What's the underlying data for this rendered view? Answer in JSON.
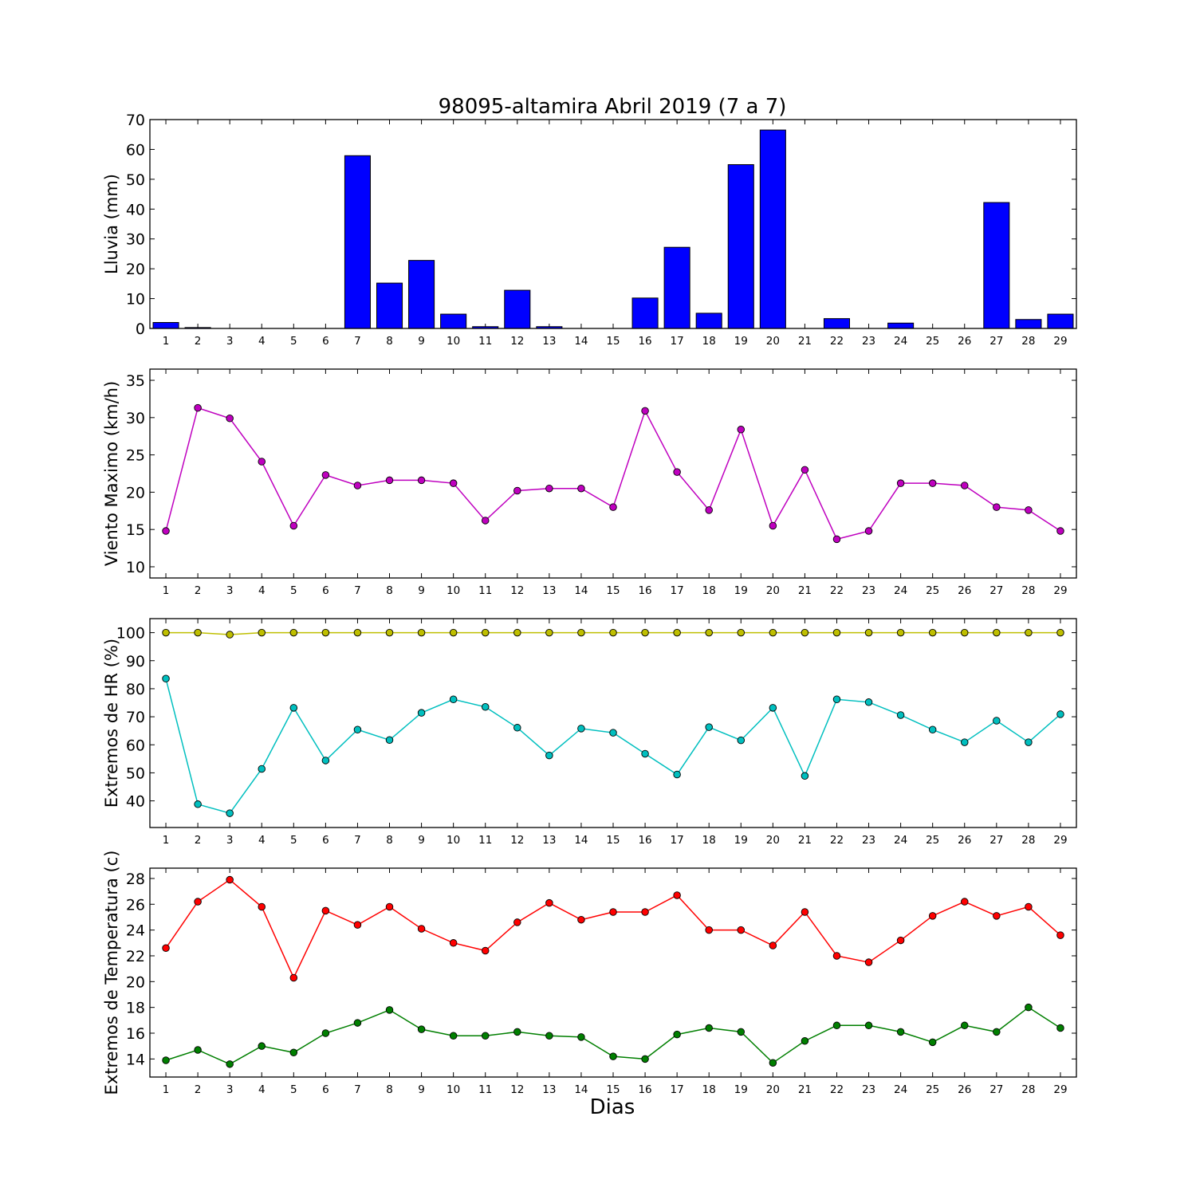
{
  "figure": {
    "title": "98095-altamira Abril 2019  (7 a 7)",
    "xlabel": "Dias"
  },
  "chart_data": [
    {
      "type": "bar",
      "ylabel": "Lluvia (mm)",
      "categories": [
        1,
        2,
        3,
        4,
        5,
        6,
        7,
        8,
        9,
        10,
        11,
        12,
        13,
        14,
        15,
        16,
        17,
        18,
        19,
        20,
        21,
        22,
        23,
        24,
        25,
        26,
        27,
        28,
        29
      ],
      "values": [
        2.0,
        0.3,
        0,
        0,
        0,
        0,
        57.9,
        15.2,
        22.8,
        4.8,
        0.6,
        12.8,
        0.6,
        0,
        0,
        10.2,
        27.2,
        5.1,
        54.9,
        66.5,
        0,
        3.3,
        0,
        1.8,
        0,
        0,
        42.2,
        3.0,
        4.8
      ],
      "ylim": [
        0,
        70
      ],
      "yticks": [
        0,
        10,
        20,
        30,
        40,
        50,
        60,
        70
      ],
      "color": "#0000ff"
    },
    {
      "type": "line",
      "ylabel": "Viento Maximo (km/h)",
      "x": [
        1,
        2,
        3,
        4,
        5,
        6,
        7,
        8,
        9,
        10,
        11,
        12,
        13,
        14,
        15,
        16,
        17,
        18,
        19,
        20,
        21,
        22,
        23,
        24,
        25,
        26,
        27,
        28,
        29
      ],
      "series": [
        {
          "color": "#bf00bf",
          "values": [
            14.8,
            31.3,
            29.9,
            24.1,
            15.5,
            22.3,
            20.9,
            21.6,
            21.6,
            21.2,
            16.2,
            20.2,
            20.5,
            20.5,
            18.0,
            30.9,
            22.7,
            17.6,
            28.4,
            15.5,
            23.0,
            13.7,
            14.8,
            21.2,
            21.2,
            20.9,
            18.0,
            17.6,
            14.8
          ]
        }
      ],
      "ylim": [
        8.5,
        36.5
      ],
      "yticks": [
        10,
        15,
        20,
        25,
        30,
        35
      ]
    },
    {
      "type": "line",
      "ylabel": "Extremos de HR (%)",
      "x": [
        1,
        2,
        3,
        4,
        5,
        6,
        7,
        8,
        9,
        10,
        11,
        12,
        13,
        14,
        15,
        16,
        17,
        18,
        19,
        20,
        21,
        22,
        23,
        24,
        25,
        26,
        27,
        28,
        29
      ],
      "series": [
        {
          "color": "#bfbf00",
          "values": [
            100,
            100,
            99.3,
            100,
            100,
            100,
            100,
            100,
            100,
            100,
            100,
            100,
            100,
            100,
            100,
            100,
            100,
            100,
            100,
            100,
            100,
            100,
            100,
            100,
            100,
            100,
            100,
            100,
            100
          ]
        },
        {
          "color": "#00bfbf",
          "values": [
            83.6,
            38.8,
            35.6,
            51.4,
            73.2,
            54.4,
            65.4,
            61.7,
            71.4,
            76.2,
            73.5,
            66.1,
            56.2,
            65.8,
            64.3,
            56.8,
            49.4,
            66.3,
            61.6,
            73.2,
            48.9,
            76.2,
            75.2,
            70.6,
            65.4,
            60.9,
            68.6,
            60.9,
            70.9
          ]
        }
      ],
      "ylim": [
        30.5,
        105
      ],
      "yticks": [
        40,
        50,
        60,
        70,
        80,
        90,
        100
      ]
    },
    {
      "type": "line",
      "ylabel": "Extremos de Temperatura (c)",
      "x": [
        1,
        2,
        3,
        4,
        5,
        6,
        7,
        8,
        9,
        10,
        11,
        12,
        13,
        14,
        15,
        16,
        17,
        18,
        19,
        20,
        21,
        22,
        23,
        24,
        25,
        26,
        27,
        28,
        29
      ],
      "series": [
        {
          "color": "#ff0000",
          "values": [
            22.6,
            26.2,
            27.9,
            25.8,
            20.3,
            25.5,
            24.4,
            25.8,
            24.1,
            23.0,
            22.4,
            24.6,
            26.1,
            24.8,
            25.4,
            25.4,
            26.7,
            24.0,
            24.0,
            22.8,
            25.4,
            22.0,
            21.5,
            23.2,
            25.1,
            26.2,
            25.1,
            25.8,
            23.6
          ]
        },
        {
          "color": "#007f00",
          "values": [
            13.9,
            14.7,
            13.6,
            15.0,
            14.5,
            16.0,
            16.8,
            17.8,
            16.3,
            15.8,
            15.8,
            16.1,
            15.8,
            15.7,
            14.2,
            14.0,
            15.9,
            16.4,
            16.1,
            13.7,
            15.4,
            16.6,
            16.6,
            16.1,
            15.3,
            16.6,
            16.1,
            18.0,
            16.4
          ]
        }
      ],
      "ylim": [
        12.6,
        28.8
      ],
      "yticks": [
        14,
        16,
        18,
        20,
        22,
        24,
        26,
        28
      ]
    }
  ]
}
